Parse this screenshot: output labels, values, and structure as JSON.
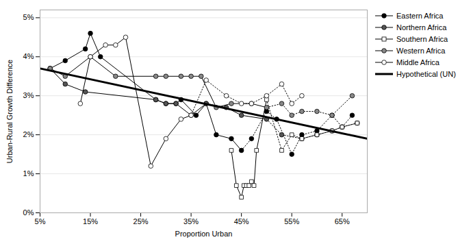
{
  "chart_data": {
    "type": "line",
    "title": "",
    "xlabel": "Proportion Urban",
    "ylabel": "Urban-Rural Growth Difference",
    "xlim": [
      0.05,
      0.7
    ],
    "ylim": [
      0.0,
      0.052
    ],
    "xticks": [
      {
        "value": 0.05,
        "label": "5%"
      },
      {
        "value": 0.15,
        "label": "15%"
      },
      {
        "value": 0.25,
        "label": "25%"
      },
      {
        "value": 0.35,
        "label": "35%"
      },
      {
        "value": 0.45,
        "label": "45%"
      },
      {
        "value": 0.55,
        "label": "55%"
      },
      {
        "value": 0.65,
        "label": "65%"
      }
    ],
    "yticks": [
      {
        "value": 0.0,
        "label": "0%"
      },
      {
        "value": 0.01,
        "label": "1%"
      },
      {
        "value": 0.02,
        "label": "2%"
      },
      {
        "value": 0.03,
        "label": "3%"
      },
      {
        "value": 0.04,
        "label": "4%"
      },
      {
        "value": 0.05,
        "label": "5%"
      }
    ],
    "grid": "y",
    "legend": "upper right",
    "series": [
      {
        "name": "Eastern Africa",
        "color": "#000000",
        "marker": "circle",
        "x": [
          0.07,
          0.1,
          0.14,
          0.15,
          0.17,
          0.28,
          0.3,
          0.32,
          0.33,
          0.36,
          0.38,
          0.4,
          0.43,
          0.45,
          0.47,
          0.5,
          0.52,
          0.55,
          0.57,
          0.6,
          0.63,
          0.65,
          0.67
        ],
        "values": [
          0.037,
          0.039,
          0.042,
          0.046,
          0.04,
          0.029,
          0.028,
          0.028,
          0.029,
          0.025,
          0.028,
          0.02,
          0.019,
          0.016,
          0.019,
          0.026,
          0.024,
          0.015,
          0.02,
          0.021,
          0.025,
          0.022,
          0.025
        ],
        "dotted_from": 0.45
      },
      {
        "name": "Northern Africa",
        "color": "#555555",
        "marker": "circle",
        "x": [
          0.07,
          0.1,
          0.14,
          0.28,
          0.3,
          0.32,
          0.35,
          0.38,
          0.42,
          0.45,
          0.5,
          0.53,
          0.57,
          0.6,
          0.63,
          0.65,
          0.68
        ],
        "values": [
          0.037,
          0.033,
          0.031,
          0.029,
          0.028,
          0.028,
          0.025,
          0.028,
          0.027,
          0.025,
          0.024,
          0.02,
          0.019,
          0.02,
          0.021,
          0.022,
          0.023
        ],
        "dotted_from": 0.5
      },
      {
        "name": "Southern Africa",
        "color": "#ffffff",
        "marker": "square",
        "x": [
          0.43,
          0.44,
          0.45,
          0.455,
          0.46,
          0.465,
          0.47,
          0.475,
          0.48,
          0.5,
          0.53,
          0.55,
          0.57,
          0.6,
          0.63,
          0.65,
          0.68
        ],
        "values": [
          0.016,
          0.007,
          0.004,
          0.007,
          0.007,
          0.007,
          0.008,
          0.007,
          0.016,
          0.029,
          0.016,
          0.02,
          0.019,
          0.02,
          0.021,
          0.022,
          0.023
        ],
        "dotted_from": 0.5
      },
      {
        "name": "Western Africa",
        "color": "#888888",
        "marker": "circle",
        "x": [
          0.07,
          0.1,
          0.15,
          0.2,
          0.28,
          0.3,
          0.33,
          0.35,
          0.37,
          0.4,
          0.43,
          0.47,
          0.5,
          0.53,
          0.55,
          0.57,
          0.6,
          0.63,
          0.67
        ],
        "values": [
          0.037,
          0.035,
          0.04,
          0.035,
          0.035,
          0.035,
          0.035,
          0.035,
          0.035,
          0.027,
          0.028,
          0.028,
          0.027,
          0.028,
          0.025,
          0.026,
          0.026,
          0.025,
          0.03
        ],
        "dotted_from": 0.5
      },
      {
        "name": "Middle Africa",
        "color": "#ffffff",
        "marker": "circle",
        "x": [
          0.13,
          0.15,
          0.18,
          0.2,
          0.22,
          0.27,
          0.3,
          0.33,
          0.35,
          0.38,
          0.42,
          0.45,
          0.47,
          0.5,
          0.53,
          0.55,
          0.57
        ],
        "values": [
          0.028,
          0.04,
          0.043,
          0.043,
          0.045,
          0.012,
          0.019,
          0.024,
          0.025,
          0.034,
          0.03,
          0.028,
          0.028,
          0.03,
          0.033,
          0.028,
          0.03
        ],
        "dotted_from": 0.35
      },
      {
        "name": "Hypothetical (UN)",
        "color": "#000000",
        "line_style": "solid",
        "x": [
          0.05,
          0.7
        ],
        "values": [
          0.037,
          0.019
        ]
      }
    ]
  }
}
